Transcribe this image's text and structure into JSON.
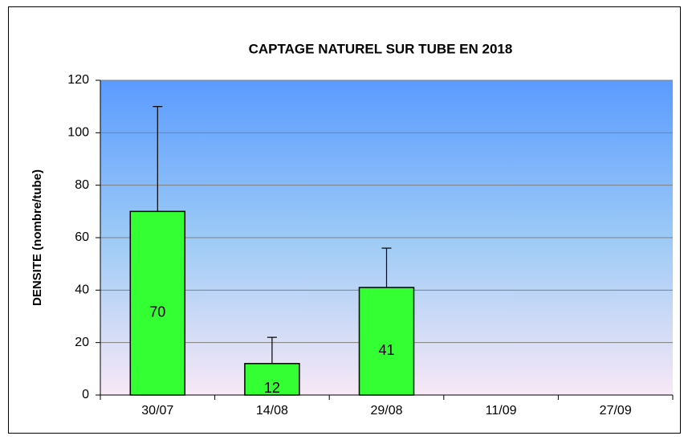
{
  "chart_data": {
    "type": "bar",
    "title": "CAPTAGE  NATUREL  SUR TUBE  EN 2018",
    "y_label": "DENSITE  (nombre/tube)",
    "categories": [
      "30/07",
      "14/08",
      "29/08",
      "11/09",
      "27/09"
    ],
    "values": [
      70,
      12,
      41,
      null,
      null
    ],
    "errors": [
      40,
      10,
      15,
      null,
      null
    ],
    "color": "#33ff33",
    "ylim": [
      0,
      120
    ],
    "yticks": [
      0,
      20,
      40,
      60,
      80,
      100,
      120
    ],
    "grid": true
  }
}
